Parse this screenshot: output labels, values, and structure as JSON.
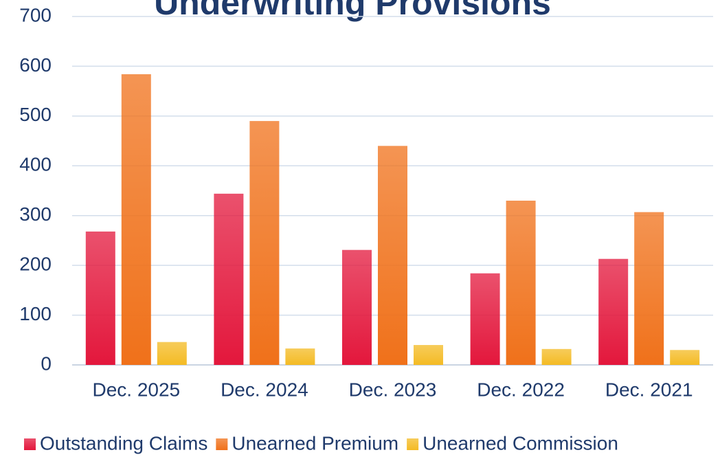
{
  "chart_data": {
    "type": "bar",
    "title": "Underwriting Provisions",
    "categories": [
      "Dec. 2025",
      "Dec. 2024",
      "Dec. 2023",
      "Dec. 2022",
      "Dec. 2021"
    ],
    "series": [
      {
        "name": "Outstanding Claims",
        "color": "#e3173c",
        "values": [
          268,
          344,
          231,
          184,
          213
        ]
      },
      {
        "name": "Unearned Premium",
        "color": "#f0711a",
        "values": [
          584,
          490,
          440,
          330,
          307
        ]
      },
      {
        "name": "Unearned Commission",
        "color": "#f4bb24",
        "values": [
          46,
          33,
          40,
          32,
          30
        ]
      }
    ],
    "ylim": [
      0,
      700
    ],
    "yticks": [
      0,
      100,
      200,
      300,
      400,
      500,
      600,
      700
    ],
    "grid": true,
    "legend": "bottom"
  }
}
